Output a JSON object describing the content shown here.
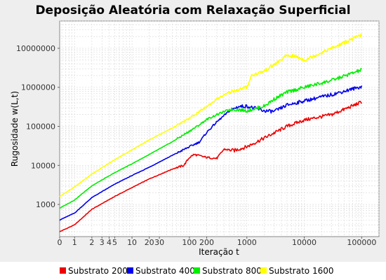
{
  "chart_data": {
    "type": "line",
    "title": "Deposição Aleatória com Relaxação Superficial",
    "xlabel": "Iteração t",
    "ylabel": "Rugosidade w(L,t)",
    "x_scale": "log",
    "y_scale": "log",
    "xlim": [
      0.55,
      200000
    ],
    "ylim": [
      150,
      50000000
    ],
    "grid": true,
    "legend_placement": "bottom",
    "x_tick_labels": [
      {
        "value": 0.55,
        "label": "0"
      },
      {
        "value": 1,
        "label": "1"
      },
      {
        "value": 2,
        "label": "2"
      },
      {
        "value": 3,
        "label": "3"
      },
      {
        "value": 4,
        "label": "4"
      },
      {
        "value": 5,
        "label": "5"
      },
      {
        "value": 10,
        "label": "10"
      },
      {
        "value": 20,
        "label": "20"
      },
      {
        "value": 30,
        "label": "30"
      },
      {
        "value": 100,
        "label": "100"
      },
      {
        "value": 200,
        "label": "200"
      },
      {
        "value": 1000,
        "label": "1000"
      },
      {
        "value": 10000,
        "label": "10000"
      },
      {
        "value": 100000,
        "label": "100000"
      }
    ],
    "y_tick_labels": [
      {
        "value": 1000,
        "label": "1000"
      },
      {
        "value": 10000,
        "label": "10000"
      },
      {
        "value": 100000,
        "label": "100000"
      },
      {
        "value": 1000000,
        "label": "1000000"
      },
      {
        "value": 10000000,
        "label": "10000000"
      }
    ],
    "series": [
      {
        "name": "Substrato 200",
        "color": "#ee0000",
        "points": [
          [
            0.55,
            200
          ],
          [
            1,
            300
          ],
          [
            2,
            750
          ],
          [
            5,
            1600
          ],
          [
            10,
            2700
          ],
          [
            20,
            4500
          ],
          [
            50,
            8000
          ],
          [
            80,
            10000
          ],
          [
            100,
            16000
          ],
          [
            120,
            19000
          ],
          [
            200,
            16000
          ],
          [
            300,
            15000
          ],
          [
            400,
            26000
          ],
          [
            600,
            24000
          ],
          [
            1000,
            30000
          ],
          [
            2000,
            50000
          ],
          [
            5000,
            100000
          ],
          [
            10000,
            145000
          ],
          [
            30000,
            200000
          ],
          [
            100000,
            420000
          ]
        ]
      },
      {
        "name": "Substrato 400",
        "color": "#0000ee",
        "points": [
          [
            0.55,
            400
          ],
          [
            1,
            600
          ],
          [
            2,
            1500
          ],
          [
            5,
            3300
          ],
          [
            10,
            5500
          ],
          [
            20,
            9000
          ],
          [
            50,
            18000
          ],
          [
            100,
            30000
          ],
          [
            150,
            40000
          ],
          [
            200,
            70000
          ],
          [
            300,
            130000
          ],
          [
            500,
            250000
          ],
          [
            700,
            320000
          ],
          [
            1000,
            330000
          ],
          [
            2000,
            250000
          ],
          [
            3000,
            240000
          ],
          [
            5000,
            350000
          ],
          [
            10000,
            450000
          ],
          [
            30000,
            650000
          ],
          [
            100000,
            1050000
          ]
        ]
      },
      {
        "name": "Substrato 800",
        "color": "#00ee00",
        "points": [
          [
            0.55,
            800
          ],
          [
            1,
            1300
          ],
          [
            2,
            3000
          ],
          [
            5,
            6500
          ],
          [
            10,
            11000
          ],
          [
            20,
            19000
          ],
          [
            50,
            40000
          ],
          [
            100,
            75000
          ],
          [
            150,
            110000
          ],
          [
            200,
            150000
          ],
          [
            300,
            200000
          ],
          [
            500,
            270000
          ],
          [
            700,
            270000
          ],
          [
            1000,
            250000
          ],
          [
            2000,
            330000
          ],
          [
            3000,
            500000
          ],
          [
            5000,
            750000
          ],
          [
            10000,
            1000000
          ],
          [
            30000,
            1500000
          ],
          [
            100000,
            2800000
          ]
        ]
      },
      {
        "name": "Substrato 1600",
        "color": "#ffff00",
        "points": [
          [
            0.55,
            1600
          ],
          [
            1,
            2800
          ],
          [
            2,
            6000
          ],
          [
            5,
            14000
          ],
          [
            10,
            25000
          ],
          [
            20,
            45000
          ],
          [
            50,
            90000
          ],
          [
            100,
            160000
          ],
          [
            200,
            320000
          ],
          [
            300,
            500000
          ],
          [
            500,
            750000
          ],
          [
            1000,
            1000000
          ],
          [
            1200,
            2000000
          ],
          [
            2000,
            2600000
          ],
          [
            3000,
            3800000
          ],
          [
            5000,
            6500000
          ],
          [
            7000,
            6200000
          ],
          [
            10000,
            5000000
          ],
          [
            30000,
            10000000
          ],
          [
            100000,
            22000000
          ]
        ]
      }
    ]
  }
}
